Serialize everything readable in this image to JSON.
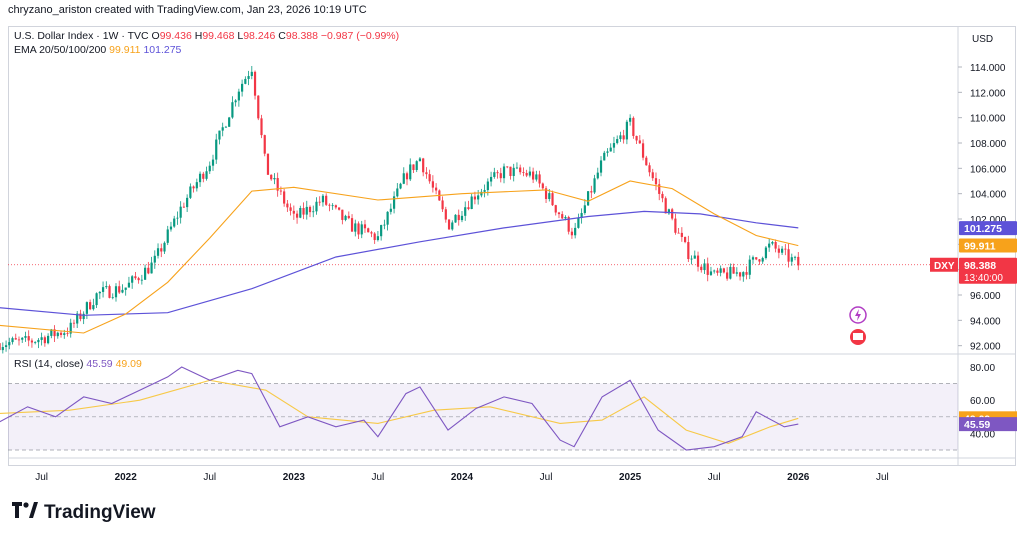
{
  "header": {
    "text": "chryzano_ariston created with TradingView.com, Jan 23, 2026 10:19 UTC"
  },
  "legend": {
    "symbol": "U.S. Dollar Index · 1W · TVC",
    "open_label": "O",
    "open": "99.436",
    "high_label": "H",
    "high": "99.468",
    "low_label": "L",
    "low": "98.246",
    "close_label": "C",
    "close": "98.388",
    "change": "−0.987 (−0.99%)",
    "ema_label": "EMA 20/50/100/200",
    "ema50": "99.911",
    "ema200": "101.275"
  },
  "rsi_legend": {
    "label": "RSI (14, close)",
    "rsi": "45.59",
    "ma": "49.09"
  },
  "brand": "TradingView",
  "colors": {
    "up": "#089981",
    "down": "#f23645",
    "ema50": "#f7a21b",
    "ema200": "#5d52d8",
    "rsi": "#7e57c2",
    "rsi_ma": "#f7c948"
  },
  "chart_data": [
    {
      "type": "candlestick",
      "title": "U.S. Dollar Index · 1W · TVC",
      "unit_label": "USD",
      "ylim": [
        91.5,
        115.5
      ],
      "y_ticks": [
        "92.000",
        "94.000",
        "96.000",
        "98.000",
        "100.000",
        "102.000",
        "104.000",
        "106.000",
        "108.000",
        "110.000",
        "112.000",
        "114.000"
      ],
      "x_ticks": [
        "Jul",
        "2022",
        "Jul",
        "2023",
        "Jul",
        "2024",
        "Jul",
        "2025",
        "Jul",
        "2026",
        "Jul"
      ],
      "price_markers": [
        {
          "text": "101.275",
          "value": 101.275,
          "color": "#5d52d8"
        },
        {
          "text": "99.911",
          "value": 99.911,
          "color": "#f7a21b"
        },
        {
          "text": "98.388",
          "value": 98.388,
          "color": "#f23645",
          "symbol": "DXY",
          "countdown": "13:40:00"
        }
      ],
      "series_close": [
        {
          "x": "2021-04",
          "y": 92.2
        },
        {
          "x": "2021-06",
          "y": 92.3
        },
        {
          "x": "2021-07",
          "y": 92.6
        },
        {
          "x": "2021-09",
          "y": 93.3
        },
        {
          "x": "2021-11",
          "y": 96.1
        },
        {
          "x": "2022-01",
          "y": 96.6
        },
        {
          "x": "2022-03",
          "y": 98.5
        },
        {
          "x": "2022-05",
          "y": 103.0
        },
        {
          "x": "2022-07",
          "y": 106.5
        },
        {
          "x": "2022-09",
          "y": 112.2
        },
        {
          "x": "2022-10",
          "y": 114.0
        },
        {
          "x": "2022-11",
          "y": 106.0
        },
        {
          "x": "2023-01",
          "y": 102.0
        },
        {
          "x": "2023-03",
          "y": 103.5
        },
        {
          "x": "2023-05",
          "y": 101.5
        },
        {
          "x": "2023-07",
          "y": 100.5
        },
        {
          "x": "2023-09",
          "y": 105.5
        },
        {
          "x": "2023-10",
          "y": 106.8
        },
        {
          "x": "2023-12",
          "y": 101.5
        },
        {
          "x": "2024-02",
          "y": 104.0
        },
        {
          "x": "2024-04",
          "y": 105.8
        },
        {
          "x": "2024-06",
          "y": 105.5
        },
        {
          "x": "2024-07",
          "y": 104.0
        },
        {
          "x": "2024-09",
          "y": 100.8
        },
        {
          "x": "2024-11",
          "y": 106.5
        },
        {
          "x": "2025-01",
          "y": 109.5
        },
        {
          "x": "2025-03",
          "y": 104.2
        },
        {
          "x": "2025-05",
          "y": 99.5
        },
        {
          "x": "2025-07",
          "y": 97.5
        },
        {
          "x": "2025-09",
          "y": 97.8
        },
        {
          "x": "2025-11",
          "y": 99.9
        },
        {
          "x": "2026-01",
          "y": 98.4
        }
      ],
      "ema50": [
        {
          "x": "2021-04",
          "y": 93.6
        },
        {
          "x": "2021-10",
          "y": 93.0
        },
        {
          "x": "2022-01",
          "y": 94.5
        },
        {
          "x": "2022-04",
          "y": 97.0
        },
        {
          "x": "2022-07",
          "y": 100.5
        },
        {
          "x": "2022-10",
          "y": 104.2
        },
        {
          "x": "2023-01",
          "y": 104.5
        },
        {
          "x": "2023-07",
          "y": 103.5
        },
        {
          "x": "2024-01",
          "y": 104.0
        },
        {
          "x": "2024-07",
          "y": 104.3
        },
        {
          "x": "2024-10",
          "y": 103.4
        },
        {
          "x": "2025-01",
          "y": 105.0
        },
        {
          "x": "2025-04",
          "y": 104.4
        },
        {
          "x": "2025-07",
          "y": 102.4
        },
        {
          "x": "2025-10",
          "y": 100.7
        },
        {
          "x": "2026-01",
          "y": 99.9
        }
      ],
      "ema200": [
        {
          "x": "2021-04",
          "y": 95.0
        },
        {
          "x": "2021-10",
          "y": 94.4
        },
        {
          "x": "2022-04",
          "y": 94.6
        },
        {
          "x": "2022-10",
          "y": 96.5
        },
        {
          "x": "2023-04",
          "y": 99.0
        },
        {
          "x": "2023-10",
          "y": 100.2
        },
        {
          "x": "2024-04",
          "y": 101.3
        },
        {
          "x": "2024-10",
          "y": 102.2
        },
        {
          "x": "2025-02",
          "y": 102.6
        },
        {
          "x": "2025-06",
          "y": 102.4
        },
        {
          "x": "2025-10",
          "y": 101.7
        },
        {
          "x": "2026-01",
          "y": 101.3
        }
      ]
    },
    {
      "type": "line",
      "title": "RSI (14, close)",
      "ylim": [
        27,
        83
      ],
      "y_ticks": [
        "40.00",
        "60.00",
        "80.00"
      ],
      "bands": [
        30,
        70
      ],
      "markers": [
        {
          "text": "49.09",
          "value": 49.09,
          "color": "#f7a21b"
        },
        {
          "text": "45.59",
          "value": 45.59,
          "color": "#7e57c2"
        }
      ],
      "series": [
        {
          "name": "RSI",
          "values": [
            {
              "x": "2021-04",
              "y": 47
            },
            {
              "x": "2021-06",
              "y": 56
            },
            {
              "x": "2021-08",
              "y": 50
            },
            {
              "x": "2021-10",
              "y": 62
            },
            {
              "x": "2021-12",
              "y": 58
            },
            {
              "x": "2022-02",
              "y": 66
            },
            {
              "x": "2022-04",
              "y": 74
            },
            {
              "x": "2022-05",
              "y": 80
            },
            {
              "x": "2022-07",
              "y": 72
            },
            {
              "x": "2022-09",
              "y": 78
            },
            {
              "x": "2022-10",
              "y": 76
            },
            {
              "x": "2022-12",
              "y": 44
            },
            {
              "x": "2023-02",
              "y": 50
            },
            {
              "x": "2023-04",
              "y": 44
            },
            {
              "x": "2023-06",
              "y": 48
            },
            {
              "x": "2023-07",
              "y": 38
            },
            {
              "x": "2023-09",
              "y": 64
            },
            {
              "x": "2023-10",
              "y": 68
            },
            {
              "x": "2023-12",
              "y": 42
            },
            {
              "x": "2024-02",
              "y": 55
            },
            {
              "x": "2024-04",
              "y": 62
            },
            {
              "x": "2024-06",
              "y": 58
            },
            {
              "x": "2024-08",
              "y": 36
            },
            {
              "x": "2024-09",
              "y": 32
            },
            {
              "x": "2024-11",
              "y": 62
            },
            {
              "x": "2025-01",
              "y": 72
            },
            {
              "x": "2025-03",
              "y": 42
            },
            {
              "x": "2025-05",
              "y": 30
            },
            {
              "x": "2025-07",
              "y": 32
            },
            {
              "x": "2025-09",
              "y": 38
            },
            {
              "x": "2025-10",
              "y": 53
            },
            {
              "x": "2025-12",
              "y": 44
            },
            {
              "x": "2026-01",
              "y": 45.6
            }
          ]
        },
        {
          "name": "RSI MA",
          "values": [
            {
              "x": "2021-04",
              "y": 52
            },
            {
              "x": "2021-09",
              "y": 54
            },
            {
              "x": "2022-02",
              "y": 60
            },
            {
              "x": "2022-07",
              "y": 72
            },
            {
              "x": "2022-11",
              "y": 66
            },
            {
              "x": "2023-02",
              "y": 50
            },
            {
              "x": "2023-07",
              "y": 46
            },
            {
              "x": "2023-11",
              "y": 54
            },
            {
              "x": "2024-03",
              "y": 56
            },
            {
              "x": "2024-08",
              "y": 46
            },
            {
              "x": "2024-11",
              "y": 48
            },
            {
              "x": "2025-02",
              "y": 62
            },
            {
              "x": "2025-05",
              "y": 42
            },
            {
              "x": "2025-08",
              "y": 34
            },
            {
              "x": "2025-11",
              "y": 44
            },
            {
              "x": "2026-01",
              "y": 49.1
            }
          ]
        }
      ]
    }
  ]
}
